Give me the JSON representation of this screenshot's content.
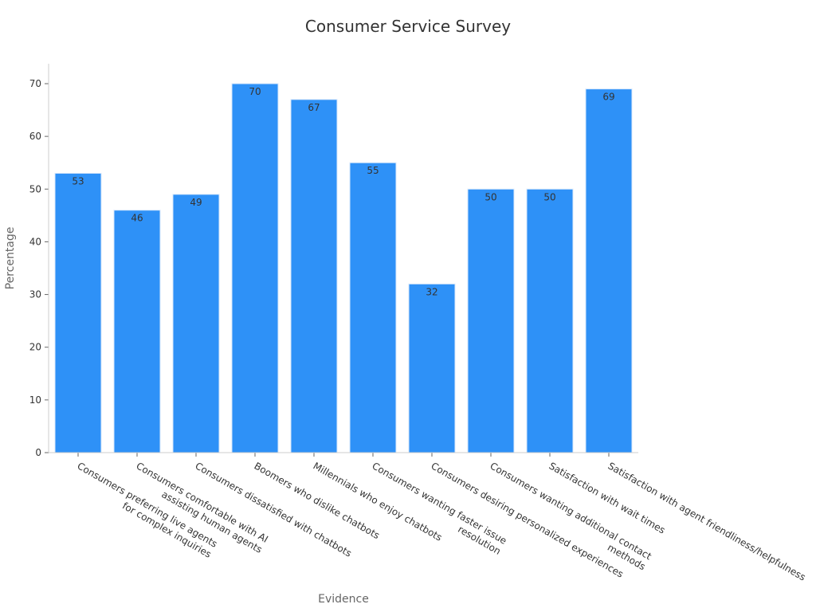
{
  "chart_data": {
    "type": "bar",
    "title": "Consumer Service Survey",
    "xlabel": "Evidence",
    "ylabel": "Percentage",
    "ylim": [
      0,
      70
    ],
    "yticks": [
      0,
      10,
      20,
      30,
      40,
      50,
      60,
      70
    ],
    "grid": false,
    "legend": "none",
    "bar_color": "#2e91f7",
    "categories": [
      [
        "Consumers preferring live agents",
        "for complex inquiries"
      ],
      [
        "Consumers comfortable with AI",
        "assisting human agents"
      ],
      [
        "Consumers dissatisfied with chatbots"
      ],
      [
        "Boomers who dislike chatbots"
      ],
      [
        "Millennials who enjoy chatbots"
      ],
      [
        "Consumers wanting faster issue",
        "resolution"
      ],
      [
        "Consumers desiring personalized experiences"
      ],
      [
        "Consumers wanting additional contact",
        "methods"
      ],
      [
        "Satisfaction with wait times"
      ],
      [
        "Satisfaction with agent friendliness/helpfulness"
      ]
    ],
    "values": [
      53,
      46,
      49,
      70,
      67,
      55,
      32,
      50,
      50,
      69
    ]
  }
}
